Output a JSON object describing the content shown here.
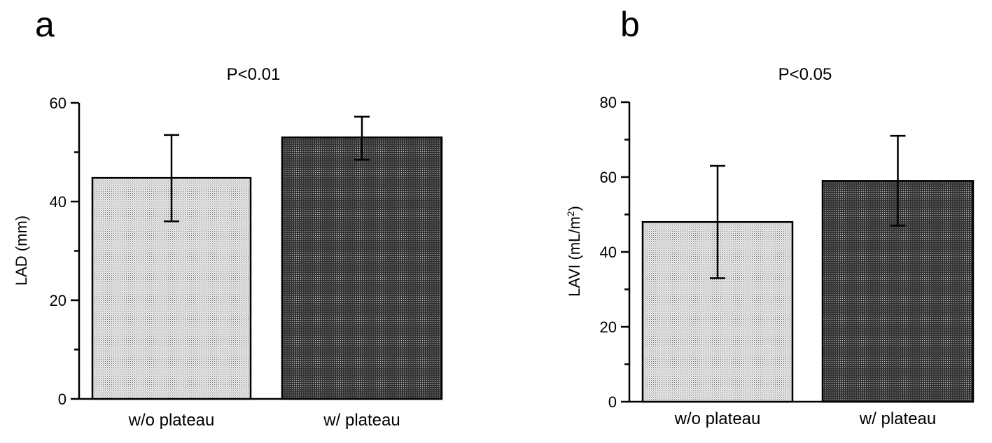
{
  "chart_data": [
    {
      "type": "bar",
      "panel": "a",
      "title": "P<0.01",
      "xlabel": "",
      "ylabel": "LAD (mm)",
      "ylabel_sup": "",
      "ylabel_suffix": "",
      "ylim": [
        0,
        60
      ],
      "yticks": [
        0,
        20,
        40,
        60
      ],
      "categories": [
        "w/o plateau",
        "w/ plateau"
      ],
      "values": [
        44.8,
        53
      ],
      "error_low": [
        36,
        48.5
      ],
      "error_high": [
        53.5,
        57.2
      ],
      "fills": [
        "light-dots",
        "dark-dots"
      ]
    },
    {
      "type": "bar",
      "panel": "b",
      "title": "P<0.05",
      "xlabel": "",
      "ylabel": "LAVI (mL/m",
      "ylabel_sup": "2",
      "ylabel_suffix": ")",
      "ylim": [
        0,
        80
      ],
      "yticks": [
        0,
        20,
        40,
        60,
        80
      ],
      "categories": [
        "w/o plateau",
        "w/ plateau"
      ],
      "values": [
        48,
        59
      ],
      "error_low": [
        33,
        47
      ],
      "error_high": [
        63,
        71
      ],
      "fills": [
        "light-dots",
        "dark-dots"
      ]
    }
  ]
}
